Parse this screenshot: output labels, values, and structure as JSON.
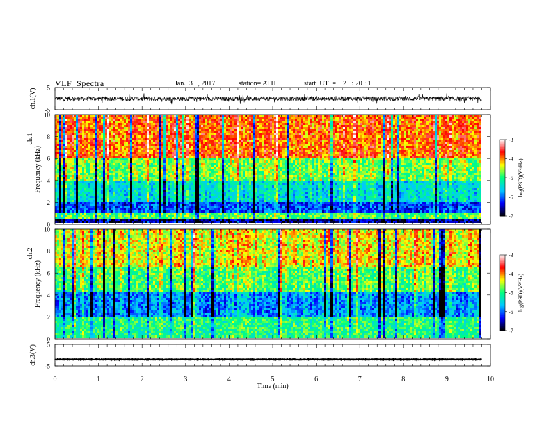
{
  "header": {
    "title": "VLF  Spectra",
    "date": "Jan.  3   , 2017",
    "station": "station= ATH",
    "start": "start  UT  =    2   : 20 : 1"
  },
  "chart_data": [
    {
      "type": "line",
      "panel": "ch1-waveform",
      "ylabel": "ch.1(V)",
      "ylim": [
        -5,
        5
      ],
      "yticks": [
        "5",
        "-5"
      ],
      "xlim": [
        0,
        10
      ],
      "data_extent_min": 9.8,
      "description_values": {
        "baseline_v": 0.0,
        "typical_amplitude_v": 1.0,
        "peak_amplitude_v": 2.6
      }
    },
    {
      "type": "heatmap",
      "panel": "ch1-spectrogram",
      "side_label": "ch.1",
      "ylabel": "Frequency  (kHz)",
      "ylim": [
        0,
        10
      ],
      "yticks": [
        "0",
        "2",
        "4",
        "6",
        "8",
        "10"
      ],
      "xlim": [
        0,
        10
      ],
      "data_extent_min": 9.8,
      "bands": [
        {
          "f_low": 0.0,
          "f_high": 0.15,
          "log_psd": -7.0
        },
        {
          "f_low": 0.15,
          "f_high": 0.45,
          "log_psd": -6.6
        },
        {
          "f_low": 0.45,
          "f_high": 1.0,
          "log_psd": -4.8
        },
        {
          "f_low": 1.0,
          "f_high": 2.0,
          "log_psd": -6.1
        },
        {
          "f_low": 2.0,
          "f_high": 4.0,
          "log_psd": -5.4
        },
        {
          "f_low": 4.0,
          "f_high": 6.0,
          "log_psd": -4.7
        },
        {
          "f_low": 6.0,
          "f_high": 10.0,
          "log_psd": -3.9
        }
      ]
    },
    {
      "type": "heatmap",
      "panel": "ch2-spectrogram",
      "side_label": "ch.2",
      "ylabel": "Frequency  (kHz)",
      "ylim": [
        0,
        10
      ],
      "yticks": [
        "0",
        "2",
        "4",
        "6",
        "8",
        "10"
      ],
      "xlim": [
        0,
        10
      ],
      "data_extent_min": 9.8,
      "bands": [
        {
          "f_low": 0.0,
          "f_high": 0.2,
          "log_psd": -6.9
        },
        {
          "f_low": 0.2,
          "f_high": 2.0,
          "log_psd": -5.0
        },
        {
          "f_low": 2.0,
          "f_high": 4.3,
          "log_psd": -5.8
        },
        {
          "f_low": 4.3,
          "f_high": 6.5,
          "log_psd": -4.8
        },
        {
          "f_low": 6.5,
          "f_high": 10.0,
          "log_psd": -4.3
        }
      ]
    },
    {
      "type": "line",
      "panel": "ch3-waveform",
      "ylabel": "ch.3(V)",
      "ylim": [
        -5,
        5
      ],
      "yticks": [
        "5",
        "-5"
      ],
      "xlim": [
        0,
        10
      ],
      "data_extent_min": 9.8,
      "xlabel": "Time  (min)",
      "xticks": [
        "0",
        "1",
        "2",
        "3",
        "4",
        "5",
        "6",
        "7",
        "8",
        "9",
        "10"
      ],
      "description_values": {
        "baseline_v": -2.0,
        "typical_amplitude_v": 0.15
      }
    }
  ],
  "colorbar": {
    "label": "log(PSD)(V²/Hz)",
    "range": [
      -7,
      -3
    ],
    "ticks": [
      "-3",
      "-4",
      "-5",
      "-6",
      "-7"
    ],
    "colors": [
      "#000000",
      "#0000ff",
      "#00c8ff",
      "#00ff80",
      "#ffff00",
      "#ff0000",
      "#ffffff"
    ]
  }
}
